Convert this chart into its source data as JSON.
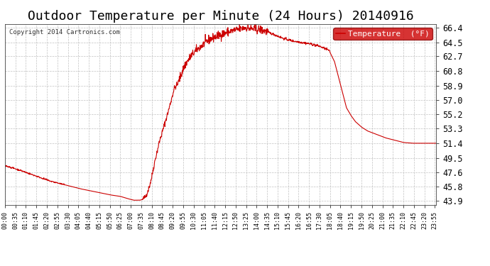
{
  "title": "Outdoor Temperature per Minute (24 Hours) 20140916",
  "copyright_text": "Copyright 2014 Cartronics.com",
  "legend_label": "Temperature  (°F)",
  "legend_bg": "#cc0000",
  "legend_text_color": "#ffffff",
  "line_color": "#cc0000",
  "bg_color": "#ffffff",
  "plot_bg_color": "#ffffff",
  "grid_color": "#bbbbbb",
  "title_fontsize": 13,
  "ytick_labels": [
    "43.9",
    "45.8",
    "47.6",
    "49.5",
    "51.4",
    "53.3",
    "55.2",
    "57.0",
    "58.9",
    "60.8",
    "62.7",
    "64.5",
    "66.4"
  ],
  "ytick_values": [
    43.9,
    45.8,
    47.6,
    49.5,
    51.4,
    53.3,
    55.2,
    57.0,
    58.9,
    60.8,
    62.7,
    64.5,
    66.4
  ],
  "ylim": [
    43.4,
    66.9
  ],
  "xtick_labels": [
    "00:00",
    "00:35",
    "01:10",
    "01:45",
    "02:20",
    "02:55",
    "03:30",
    "04:05",
    "04:40",
    "05:15",
    "05:50",
    "06:25",
    "07:00",
    "07:35",
    "08:10",
    "08:45",
    "09:20",
    "09:55",
    "10:30",
    "11:05",
    "11:40",
    "12:15",
    "12:50",
    "13:25",
    "14:00",
    "14:35",
    "15:10",
    "15:45",
    "16:20",
    "16:55",
    "17:30",
    "18:05",
    "18:40",
    "19:15",
    "19:50",
    "20:25",
    "21:00",
    "21:35",
    "22:10",
    "22:45",
    "23:20",
    "23:55"
  ],
  "num_points": 1440,
  "key_x": [
    0,
    50,
    100,
    150,
    200,
    250,
    300,
    350,
    385,
    410,
    430,
    450,
    460,
    470,
    480,
    490,
    500,
    515,
    530,
    545,
    555,
    565,
    575,
    585,
    600,
    620,
    640,
    660,
    680,
    700,
    720,
    740,
    760,
    780,
    800,
    820,
    840,
    860,
    880,
    900,
    930,
    960,
    990,
    1020,
    1050,
    1080,
    1085,
    1090,
    1100,
    1110,
    1120,
    1130,
    1140,
    1155,
    1170,
    1190,
    1210,
    1230,
    1250,
    1270,
    1290,
    1310,
    1330,
    1360,
    1390,
    1420,
    1439
  ],
  "key_y": [
    48.5,
    47.9,
    47.2,
    46.5,
    46.0,
    45.5,
    45.1,
    44.7,
    44.5,
    44.2,
    44.0,
    44.0,
    44.1,
    44.5,
    45.5,
    47.0,
    49.0,
    51.5,
    53.5,
    55.5,
    57.0,
    58.5,
    59.0,
    60.0,
    61.5,
    62.7,
    63.5,
    64.2,
    64.8,
    65.2,
    65.5,
    65.8,
    66.0,
    66.2,
    66.4,
    66.3,
    66.2,
    66.1,
    65.8,
    65.5,
    65.0,
    64.7,
    64.5,
    64.3,
    64.0,
    63.5,
    63.2,
    62.8,
    62.0,
    60.5,
    59.0,
    57.5,
    56.0,
    55.0,
    54.2,
    53.5,
    53.0,
    52.7,
    52.4,
    52.1,
    51.9,
    51.7,
    51.5,
    51.4,
    51.4,
    51.4,
    51.4
  ]
}
